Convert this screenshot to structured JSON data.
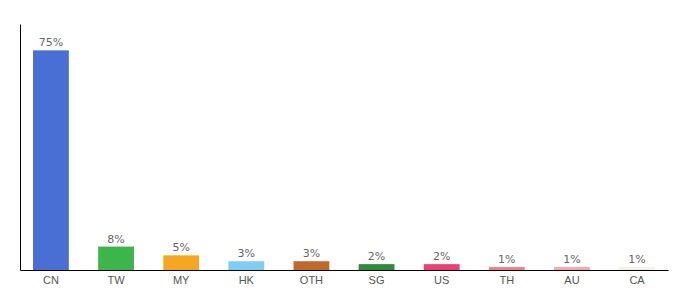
{
  "chart_data": {
    "type": "bar",
    "categories": [
      "CN",
      "TW",
      "MY",
      "HK",
      "OTH",
      "SG",
      "US",
      "TH",
      "AU",
      "CA"
    ],
    "values": [
      75,
      8,
      5,
      3,
      3,
      2,
      2,
      1,
      1,
      1
    ],
    "value_labels": [
      "75%",
      "8%",
      "5%",
      "3%",
      "3%",
      "2%",
      "2%",
      "1%",
      "1%",
      "1%"
    ],
    "data_labels": true,
    "colors": [
      "#4a6fd4",
      "#3cb54a",
      "#f5a623",
      "#7ecef4",
      "#c0692a",
      "#2e8b3a",
      "#e8417a",
      "#f08080",
      "#f4a9a8",
      "#f5f0e8"
    ],
    "ylim": [
      0,
      84
    ],
    "yticks": [],
    "tick_labels": "x",
    "grid": false
  }
}
